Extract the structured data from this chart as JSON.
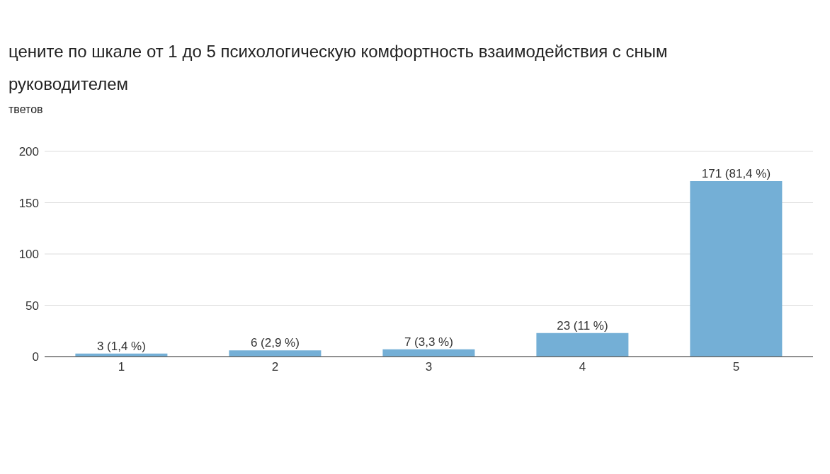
{
  "chart_data": {
    "type": "bar",
    "title": "цените по шкале от 1 до 5 психологическую комфортность взаимодействия с сным руководителем",
    "ylabel": "тветов",
    "categories": [
      "1",
      "2",
      "3",
      "4",
      "5"
    ],
    "values": [
      3,
      6,
      7,
      23,
      171
    ],
    "value_labels": [
      "3 (1,4 %)",
      "6 (2,9 %)",
      "7 (3,3 %)",
      "23 (11 %)",
      "171 (81,4 %)"
    ],
    "color": "#74afd6",
    "ylim": [
      0,
      200
    ],
    "yticks": [
      0,
      50,
      100,
      150,
      200
    ],
    "grid": "y"
  }
}
